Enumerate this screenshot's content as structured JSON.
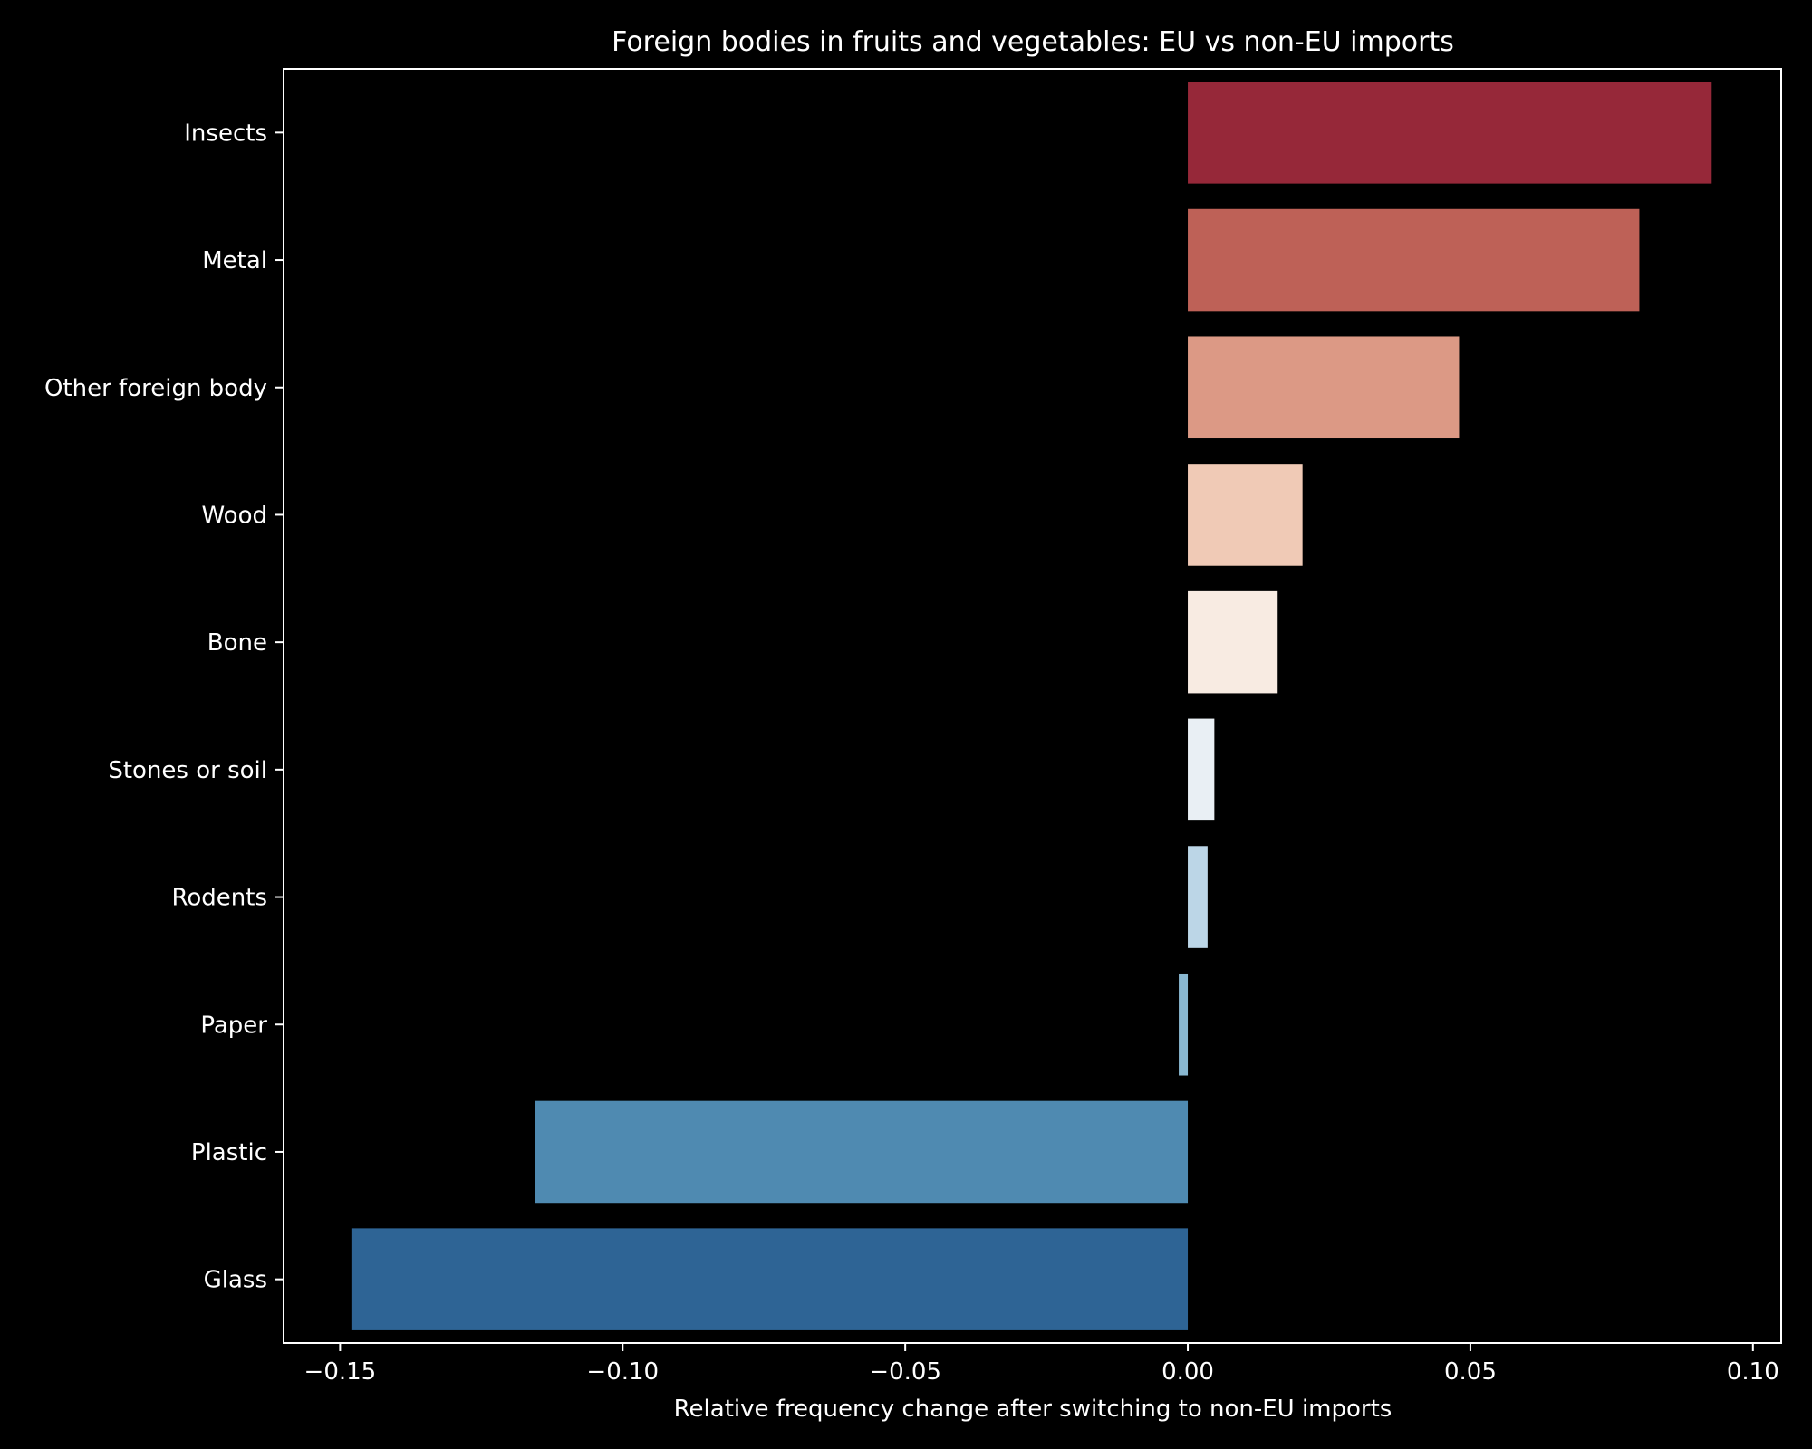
{
  "chart_data": {
    "type": "bar",
    "orientation": "horizontal",
    "title": "Foreign bodies in fruits and vegetables: EU vs non-EU imports",
    "xlabel": "Relative frequency change after switching to non-EU imports",
    "ylabel": "",
    "xlim": [
      -0.16,
      0.105
    ],
    "xticks": [
      -0.15,
      -0.1,
      -0.05,
      0.0,
      0.05,
      0.1
    ],
    "xtick_labels": [
      "−0.15",
      "−0.10",
      "−0.05",
      "0.00",
      "0.05",
      "0.10"
    ],
    "categories": [
      "Insects",
      "Metal",
      "Other foreign body",
      "Wood",
      "Bone",
      "Stones or soil",
      "Rodents",
      "Paper",
      "Plastic",
      "Glass"
    ],
    "values": [
      0.0927,
      0.0799,
      0.048,
      0.0203,
      0.0159,
      0.0047,
      0.0035,
      -0.0016,
      -0.1155,
      -0.148
    ],
    "colors": [
      "#962839",
      "#be6157",
      "#dc9985",
      "#f0cab6",
      "#f8ebe2",
      "#e9eff4",
      "#bcd6e7",
      "#8ab8d1",
      "#4f8ab1",
      "#2e6495"
    ],
    "grid": false,
    "legend": "none"
  }
}
